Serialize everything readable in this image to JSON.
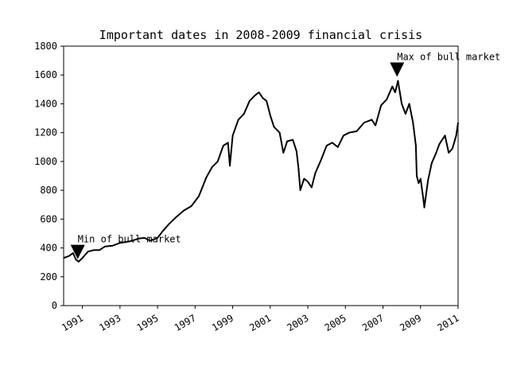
{
  "chart_data": {
    "type": "line",
    "title": "Important dates in 2008-2009 financial crisis",
    "xlabel": "",
    "ylabel": "",
    "xlim": [
      1990.0,
      2011.0
    ],
    "ylim": [
      0,
      1800
    ],
    "x_ticks": [
      1991,
      1993,
      1995,
      1997,
      1999,
      2001,
      2003,
      2005,
      2007,
      2009,
      2011
    ],
    "y_ticks": [
      0,
      200,
      400,
      600,
      800,
      1000,
      1200,
      1400,
      1600,
      1800
    ],
    "grid": false,
    "series": [
      {
        "color": "#000000",
        "points": [
          [
            1990.0,
            330
          ],
          [
            1990.3,
            345
          ],
          [
            1990.5,
            365
          ],
          [
            1990.65,
            320
          ],
          [
            1990.8,
            305
          ],
          [
            1991.0,
            330
          ],
          [
            1991.3,
            375
          ],
          [
            1991.6,
            385
          ],
          [
            1991.9,
            385
          ],
          [
            1992.2,
            410
          ],
          [
            1992.6,
            415
          ],
          [
            1993.0,
            435
          ],
          [
            1993.5,
            445
          ],
          [
            1994.0,
            465
          ],
          [
            1994.3,
            470
          ],
          [
            1994.6,
            450
          ],
          [
            1995.0,
            470
          ],
          [
            1995.3,
            520
          ],
          [
            1995.6,
            565
          ],
          [
            1996.0,
            615
          ],
          [
            1996.4,
            660
          ],
          [
            1996.8,
            690
          ],
          [
            1997.2,
            760
          ],
          [
            1997.6,
            890
          ],
          [
            1997.9,
            960
          ],
          [
            1998.2,
            1000
          ],
          [
            1998.5,
            1110
          ],
          [
            1998.75,
            1130
          ],
          [
            1998.85,
            970
          ],
          [
            1999.0,
            1180
          ],
          [
            1999.3,
            1290
          ],
          [
            1999.6,
            1330
          ],
          [
            1999.9,
            1420
          ],
          [
            2000.2,
            1460
          ],
          [
            2000.4,
            1480
          ],
          [
            2000.6,
            1440
          ],
          [
            2000.8,
            1420
          ],
          [
            2001.0,
            1320
          ],
          [
            2001.2,
            1240
          ],
          [
            2001.5,
            1200
          ],
          [
            2001.7,
            1060
          ],
          [
            2001.9,
            1140
          ],
          [
            2002.2,
            1150
          ],
          [
            2002.4,
            1070
          ],
          [
            2002.5,
            960
          ],
          [
            2002.6,
            800
          ],
          [
            2002.8,
            880
          ],
          [
            2003.0,
            860
          ],
          [
            2003.2,
            820
          ],
          [
            2003.4,
            920
          ],
          [
            2003.7,
            1010
          ],
          [
            2004.0,
            1110
          ],
          [
            2004.3,
            1130
          ],
          [
            2004.6,
            1100
          ],
          [
            2004.9,
            1180
          ],
          [
            2005.2,
            1200
          ],
          [
            2005.6,
            1210
          ],
          [
            2006.0,
            1270
          ],
          [
            2006.4,
            1290
          ],
          [
            2006.6,
            1250
          ],
          [
            2006.9,
            1390
          ],
          [
            2007.2,
            1430
          ],
          [
            2007.5,
            1520
          ],
          [
            2007.65,
            1480
          ],
          [
            2007.8,
            1560
          ],
          [
            2008.0,
            1400
          ],
          [
            2008.2,
            1330
          ],
          [
            2008.4,
            1400
          ],
          [
            2008.6,
            1270
          ],
          [
            2008.75,
            1110
          ],
          [
            2008.8,
            900
          ],
          [
            2008.9,
            850
          ],
          [
            2009.0,
            880
          ],
          [
            2009.15,
            740
          ],
          [
            2009.2,
            680
          ],
          [
            2009.4,
            870
          ],
          [
            2009.6,
            990
          ],
          [
            2009.8,
            1050
          ],
          [
            2010.0,
            1120
          ],
          [
            2010.3,
            1180
          ],
          [
            2010.5,
            1060
          ],
          [
            2010.7,
            1090
          ],
          [
            2010.9,
            1180
          ],
          [
            2011.0,
            1270
          ]
        ]
      }
    ],
    "annotations": [
      {
        "label": "Min of bull market",
        "x": 1990.75,
        "y": 300
      },
      {
        "label": "Max of bull market",
        "x": 2007.75,
        "y": 1565
      }
    ]
  }
}
